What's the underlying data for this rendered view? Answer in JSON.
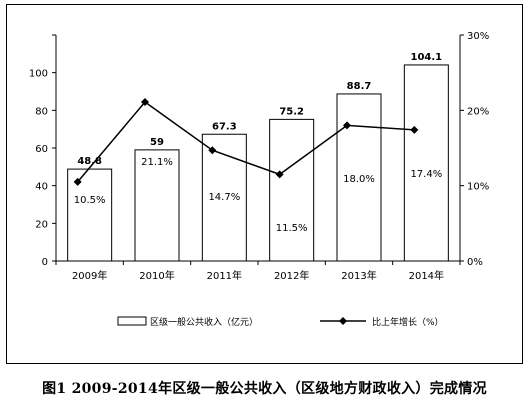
{
  "chart_data": {
    "type": "bar",
    "categories": [
      "2009年",
      "2010年",
      "2011年",
      "2012年",
      "2013年",
      "2014年"
    ],
    "series": [
      {
        "name": "区级一般公共收入（亿元）",
        "type": "bar",
        "axis": "left",
        "values": [
          48.8,
          59,
          67.3,
          75.2,
          88.7,
          104.1
        ],
        "labels": [
          "48.8",
          "59",
          "67.3",
          "75.2",
          "88.7",
          "104.1"
        ]
      },
      {
        "name": "比上年增长（%）",
        "type": "line",
        "axis": "right",
        "values": [
          10.5,
          21.1,
          14.7,
          11.5,
          18.0,
          17.4
        ],
        "labels": [
          "10.5%",
          "21.1%",
          "14.7%",
          "11.5%",
          "18.0%",
          "17.4%"
        ]
      }
    ],
    "y_left": {
      "ticks": [
        "0",
        "20",
        "40",
        "60",
        "80",
        "100"
      ],
      "ylim": [
        0,
        120
      ]
    },
    "y_right": {
      "ticks": [
        "0%",
        "10%",
        "20%",
        "30%"
      ],
      "ylim": [
        0,
        30
      ]
    },
    "grid": false,
    "legend_position": "bottom"
  },
  "caption": "图1 2009-2014年区级一般公共收入（区级地方财政收入）完成情况"
}
